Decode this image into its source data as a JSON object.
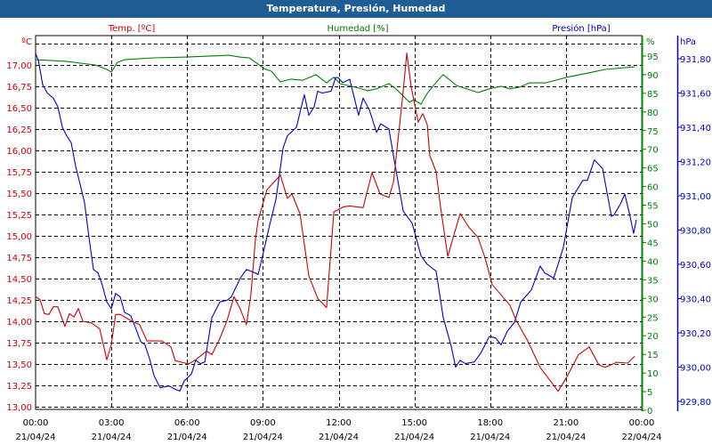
{
  "title": "Temperatura, Presión, Humedad",
  "colors": {
    "temp": "#cc0000",
    "hum": "#008000",
    "pres": "#0000cc",
    "title_bg": "#1f5d94"
  },
  "chart_data": {
    "type": "line",
    "title": "Temperatura, Presión, Humedad",
    "legend": [
      "Temp. [ºC]",
      "Humedad [%]",
      "Presión [hPa]"
    ],
    "grid": true,
    "x_range_hours": [
      0,
      24
    ],
    "x_ticks": [
      {
        "h": 0,
        "time": "00:00",
        "date": "21/04/24"
      },
      {
        "h": 3,
        "time": "03:00",
        "date": "21/04/24"
      },
      {
        "h": 6,
        "time": "06:00",
        "date": "21/04/24"
      },
      {
        "h": 9,
        "time": "09:00",
        "date": "21/04/24"
      },
      {
        "h": 12,
        "time": "12:00",
        "date": "21/04/24"
      },
      {
        "h": 15,
        "time": "15:00",
        "date": "21/04/24"
      },
      {
        "h": 18,
        "time": "18:00",
        "date": "21/04/24"
      },
      {
        "h": 21,
        "time": "21:00",
        "date": "21/04/24"
      },
      {
        "h": 24,
        "time": "00:00",
        "date": "22/04/24"
      }
    ],
    "axes": {
      "temp": {
        "unit": "ºC",
        "range": [
          13.0,
          17.25
        ],
        "ticks": [
          13.0,
          13.25,
          13.5,
          13.75,
          14.0,
          14.25,
          14.5,
          14.75,
          15.0,
          15.25,
          15.5,
          15.75,
          16.0,
          16.25,
          16.5,
          16.75,
          17.0
        ],
        "labels": [
          "13,00",
          "13,25",
          "13,50",
          "13,75",
          "14,00",
          "14,25",
          "14,50",
          "14,75",
          "15,00",
          "15,25",
          "15,50",
          "15,75",
          "16,00",
          "16,25",
          "16,50",
          "16,75",
          "17,00"
        ]
      },
      "hum": {
        "unit": "%",
        "range": [
          0,
          100
        ],
        "ticks": [
          0,
          5,
          10,
          15,
          20,
          25,
          30,
          35,
          40,
          45,
          50,
          55,
          60,
          65,
          70,
          75,
          80,
          85,
          90,
          95
        ],
        "labels": [
          "0",
          "5",
          "10",
          "15",
          "20",
          "25",
          "30",
          "35",
          "40",
          "45",
          "50",
          "55",
          "60",
          "65",
          "70",
          "75",
          "80",
          "85",
          "90",
          "95"
        ]
      },
      "pres": {
        "unit": "hPa",
        "range": [
          929.78,
          931.9
        ],
        "ticks": [
          929.8,
          930.0,
          930.2,
          930.4,
          930.6,
          930.8,
          931.0,
          931.2,
          931.4,
          931.6,
          931.8
        ],
        "labels": [
          "929,80",
          "930,00",
          "930,20",
          "930,40",
          "930,60",
          "930,80",
          "931,00",
          "931,20",
          "931,40",
          "931,60",
          "931,80"
        ]
      }
    },
    "series": [
      {
        "name": "Temp. [ºC]",
        "axis": "temp",
        "points": [
          [
            0.0,
            14.29
          ],
          [
            0.18,
            14.25
          ],
          [
            0.35,
            14.09
          ],
          [
            0.53,
            14.08
          ],
          [
            0.7,
            14.17
          ],
          [
            0.88,
            14.17
          ],
          [
            1.16,
            13.94
          ],
          [
            1.34,
            14.09
          ],
          [
            1.52,
            14.05
          ],
          [
            1.69,
            14.15
          ],
          [
            1.87,
            14.0
          ],
          [
            2.22,
            13.98
          ],
          [
            2.54,
            13.91
          ],
          [
            2.82,
            13.55
          ],
          [
            3.0,
            13.73
          ],
          [
            3.17,
            14.08
          ],
          [
            3.35,
            14.08
          ],
          [
            3.88,
            13.99
          ],
          [
            4.12,
            13.96
          ],
          [
            4.41,
            13.77
          ],
          [
            5.0,
            13.77
          ],
          [
            5.36,
            13.7
          ],
          [
            5.53,
            13.54
          ],
          [
            6.06,
            13.5
          ],
          [
            6.34,
            13.55
          ],
          [
            6.77,
            13.65
          ],
          [
            6.98,
            13.61
          ],
          [
            7.3,
            13.8
          ],
          [
            7.58,
            14.01
          ],
          [
            7.86,
            14.29
          ],
          [
            8.11,
            14.14
          ],
          [
            8.35,
            13.96
          ],
          [
            8.53,
            14.32
          ],
          [
            8.7,
            14.95
          ],
          [
            8.81,
            15.18
          ],
          [
            9.16,
            15.54
          ],
          [
            9.69,
            15.71
          ],
          [
            9.97,
            15.44
          ],
          [
            10.15,
            15.49
          ],
          [
            10.47,
            15.26
          ],
          [
            10.82,
            14.53
          ],
          [
            11.17,
            14.27
          ],
          [
            11.52,
            14.16
          ],
          [
            11.81,
            15.28
          ],
          [
            12.19,
            15.34
          ],
          [
            12.44,
            15.35
          ],
          [
            12.97,
            15.33
          ],
          [
            13.32,
            15.74
          ],
          [
            13.64,
            15.49
          ],
          [
            13.99,
            15.45
          ],
          [
            14.17,
            15.63
          ],
          [
            14.52,
            16.59
          ],
          [
            14.7,
            17.14
          ],
          [
            14.87,
            16.75
          ],
          [
            15.15,
            16.33
          ],
          [
            15.33,
            16.43
          ],
          [
            15.51,
            16.3
          ],
          [
            15.61,
            15.94
          ],
          [
            15.86,
            15.75
          ],
          [
            16.04,
            15.33
          ],
          [
            16.32,
            14.76
          ],
          [
            16.81,
            15.26
          ],
          [
            17.16,
            15.1
          ],
          [
            17.52,
            14.98
          ],
          [
            17.8,
            14.74
          ],
          [
            18.08,
            14.43
          ],
          [
            18.78,
            14.19
          ],
          [
            19.03,
            14.01
          ],
          [
            19.49,
            13.77
          ],
          [
            19.98,
            13.46
          ],
          [
            20.44,
            13.28
          ],
          [
            20.69,
            13.18
          ],
          [
            21.04,
            13.35
          ],
          [
            21.5,
            13.61
          ],
          [
            21.92,
            13.7
          ],
          [
            22.31,
            13.49
          ],
          [
            22.55,
            13.46
          ],
          [
            23.01,
            13.52
          ],
          [
            23.44,
            13.51
          ],
          [
            23.72,
            13.59
          ]
        ]
      },
      {
        "name": "Humedad [%]",
        "axis": "hum",
        "points": [
          [
            0.0,
            94.0
          ],
          [
            1.16,
            93.6
          ],
          [
            2.36,
            92.6
          ],
          [
            2.82,
            91.4
          ],
          [
            3.0,
            90.7
          ],
          [
            3.24,
            93.3
          ],
          [
            3.52,
            94.0
          ],
          [
            4.69,
            94.5
          ],
          [
            5.88,
            94.7
          ],
          [
            7.65,
            95.2
          ],
          [
            8.11,
            94.7
          ],
          [
            8.46,
            94.5
          ],
          [
            9.06,
            91.6
          ],
          [
            9.34,
            90.9
          ],
          [
            9.69,
            88.1
          ],
          [
            10.12,
            88.8
          ],
          [
            10.57,
            88.5
          ],
          [
            11.1,
            90.0
          ],
          [
            11.52,
            87.8
          ],
          [
            11.81,
            89.3
          ],
          [
            12.05,
            87.6
          ],
          [
            12.69,
            86.6
          ],
          [
            13.15,
            85.7
          ],
          [
            13.5,
            86.2
          ],
          [
            13.99,
            87.6
          ],
          [
            14.27,
            86.2
          ],
          [
            14.8,
            82.6
          ],
          [
            14.98,
            83.3
          ],
          [
            15.26,
            82.1
          ],
          [
            15.51,
            85.0
          ],
          [
            15.93,
            88.5
          ],
          [
            16.14,
            90.0
          ],
          [
            16.67,
            87.1
          ],
          [
            17.52,
            85.2
          ],
          [
            17.97,
            86.2
          ],
          [
            18.43,
            86.9
          ],
          [
            18.78,
            86.2
          ],
          [
            19.14,
            86.6
          ],
          [
            19.56,
            87.8
          ],
          [
            20.19,
            87.8
          ],
          [
            21.04,
            89.3
          ],
          [
            21.92,
            90.5
          ],
          [
            22.55,
            91.4
          ],
          [
            23.72,
            92.1
          ]
        ]
      },
      {
        "name": "Presión [hPa]",
        "axis": "pres",
        "points": [
          [
            0.0,
            931.83
          ],
          [
            0.11,
            931.79
          ],
          [
            0.28,
            931.65
          ],
          [
            0.46,
            931.6
          ],
          [
            0.7,
            931.57
          ],
          [
            0.88,
            931.52
          ],
          [
            1.06,
            931.4
          ],
          [
            1.23,
            931.35
          ],
          [
            1.41,
            931.31
          ],
          [
            1.59,
            931.17
          ],
          [
            1.76,
            931.07
          ],
          [
            1.94,
            930.96
          ],
          [
            2.11,
            930.76
          ],
          [
            2.29,
            930.57
          ],
          [
            2.47,
            930.55
          ],
          [
            2.64,
            930.48
          ],
          [
            2.82,
            930.38
          ],
          [
            3.0,
            930.34
          ],
          [
            3.17,
            930.43
          ],
          [
            3.35,
            930.41
          ],
          [
            3.52,
            930.32
          ],
          [
            3.77,
            930.3
          ],
          [
            3.98,
            930.22
          ],
          [
            4.16,
            930.15
          ],
          [
            4.33,
            930.13
          ],
          [
            4.51,
            930.05
          ],
          [
            4.69,
            929.95
          ],
          [
            4.93,
            929.88
          ],
          [
            5.29,
            929.89
          ],
          [
            5.53,
            929.87
          ],
          [
            5.71,
            929.86
          ],
          [
            5.89,
            929.92
          ],
          [
            6.17,
            929.96
          ],
          [
            6.34,
            930.04
          ],
          [
            6.52,
            930.02
          ],
          [
            6.7,
            930.03
          ],
          [
            6.98,
            930.29
          ],
          [
            7.3,
            930.38
          ],
          [
            7.58,
            930.39
          ],
          [
            7.75,
            930.41
          ],
          [
            8.11,
            930.52
          ],
          [
            8.35,
            930.57
          ],
          [
            8.7,
            930.55
          ],
          [
            8.81,
            930.54
          ],
          [
            8.99,
            930.65
          ],
          [
            9.27,
            930.83
          ],
          [
            9.52,
            930.98
          ],
          [
            9.8,
            931.28
          ],
          [
            9.97,
            931.35
          ],
          [
            10.33,
            931.4
          ],
          [
            10.64,
            931.59
          ],
          [
            10.82,
            931.47
          ],
          [
            11.03,
            931.52
          ],
          [
            11.17,
            931.61
          ],
          [
            11.35,
            931.6
          ],
          [
            11.7,
            931.61
          ],
          [
            11.88,
            931.69
          ],
          [
            11.98,
            931.69
          ],
          [
            12.16,
            931.66
          ],
          [
            12.44,
            931.68
          ],
          [
            12.79,
            931.47
          ],
          [
            12.97,
            931.57
          ],
          [
            13.22,
            931.5
          ],
          [
            13.5,
            931.37
          ],
          [
            13.67,
            931.42
          ],
          [
            13.99,
            931.39
          ],
          [
            14.2,
            931.21
          ],
          [
            14.56,
            930.91
          ],
          [
            14.91,
            930.84
          ],
          [
            15.26,
            930.65
          ],
          [
            15.51,
            930.6
          ],
          [
            15.86,
            930.56
          ],
          [
            16.14,
            930.29
          ],
          [
            16.46,
            930.12
          ],
          [
            16.63,
            930.0
          ],
          [
            16.81,
            930.04
          ],
          [
            17.02,
            930.02
          ],
          [
            17.37,
            930.03
          ],
          [
            17.62,
            930.08
          ],
          [
            17.97,
            930.18
          ],
          [
            18.22,
            930.17
          ],
          [
            18.43,
            930.13
          ],
          [
            18.68,
            930.21
          ],
          [
            18.96,
            930.26
          ],
          [
            19.21,
            930.38
          ],
          [
            19.63,
            930.45
          ],
          [
            19.98,
            930.59
          ],
          [
            20.16,
            930.55
          ],
          [
            20.51,
            930.52
          ],
          [
            20.69,
            930.6
          ],
          [
            20.9,
            930.7
          ],
          [
            21.25,
            930.99
          ],
          [
            21.67,
            931.09
          ],
          [
            21.85,
            931.09
          ],
          [
            22.13,
            931.21
          ],
          [
            22.45,
            931.16
          ],
          [
            22.8,
            930.88
          ],
          [
            22.91,
            930.89
          ],
          [
            23.15,
            930.95
          ],
          [
            23.33,
            931.01
          ],
          [
            23.51,
            930.9
          ],
          [
            23.68,
            930.78
          ],
          [
            23.79,
            930.86
          ]
        ]
      }
    ]
  }
}
